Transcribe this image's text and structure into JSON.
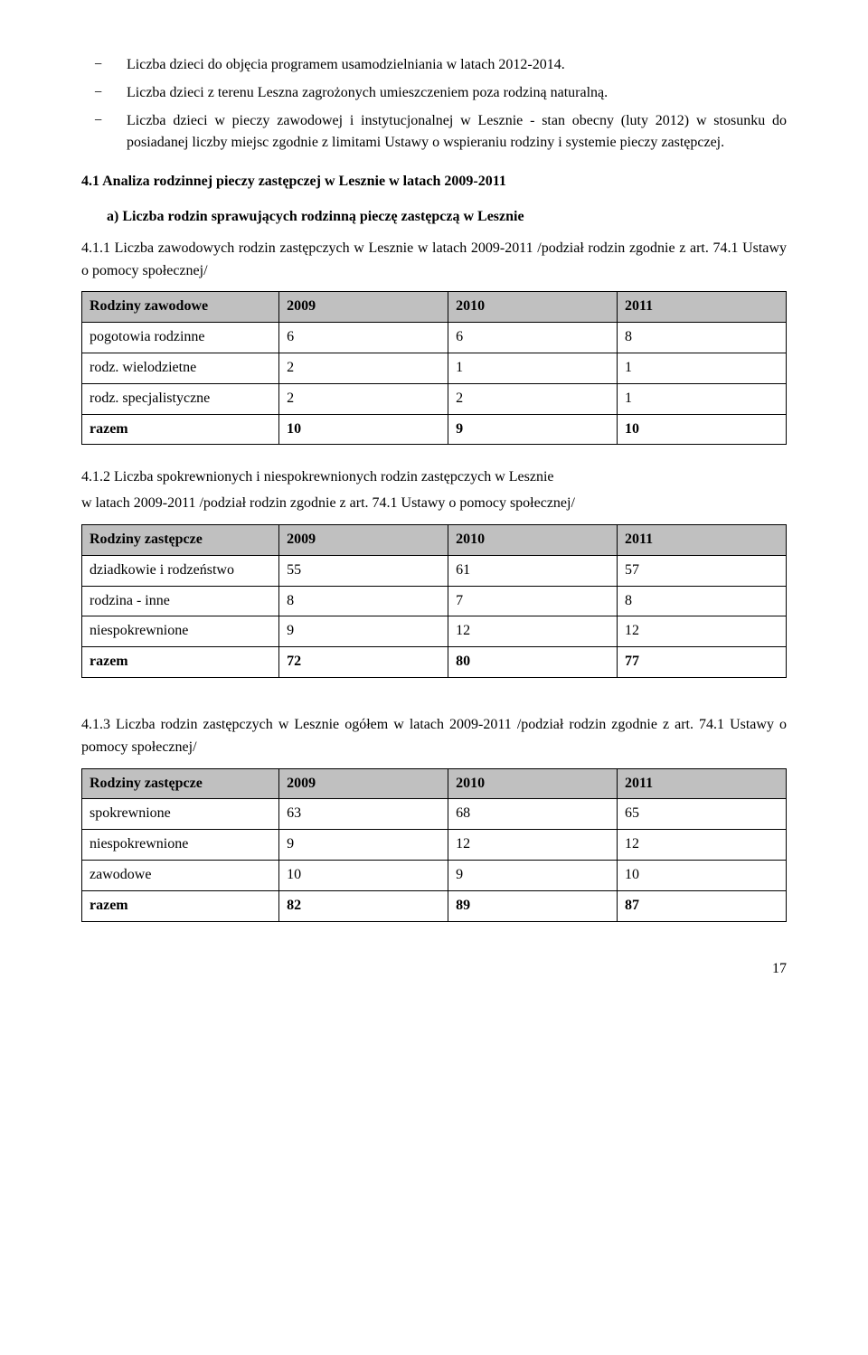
{
  "bullets": [
    "Liczba dzieci do objęcia programem usamodzielniania w latach 2012-2014.",
    "Liczba dzieci z terenu Leszna zagrożonych umieszczeniem poza rodziną naturalną.",
    "Liczba dzieci w pieczy zawodowej i instytucjonalnej w Lesznie - stan obecny (luty 2012) w stosunku do posiadanej liczby miejsc zgodnie z limitami Ustawy o wspieraniu rodziny i systemie pieczy zastępczej."
  ],
  "bullet_marker": "−",
  "heading_4_1": "4.1    Analiza rodzinnej pieczy zastępczej w Lesznie w latach 2009-2011",
  "sub_a": "a)   Liczba rodzin sprawujących rodzinną pieczę zastępczą w Lesznie",
  "para_4_1_1": "4.1.1  Liczba zawodowych rodzin zastępczych w Lesznie w latach 2009-2011 /podział rodzin zgodnie z art. 74.1 Ustawy o pomocy społecznej/",
  "table1": {
    "header_bg": "#c0c0c0",
    "col_widths": [
      "28%",
      "24%",
      "24%",
      "24%"
    ],
    "headers": [
      "Rodziny zawodowe",
      "2009",
      "2010",
      "2011"
    ],
    "rows": [
      {
        "cells": [
          "pogotowia rodzinne",
          "6",
          "6",
          "8"
        ],
        "bold": false
      },
      {
        "cells": [
          "rodz. wielodzietne",
          "2",
          "1",
          "1"
        ],
        "bold": false
      },
      {
        "cells": [
          "rodz. specjalistyczne",
          "2",
          "2",
          "1"
        ],
        "bold": false
      },
      {
        "cells": [
          "razem",
          "10",
          "9",
          "10"
        ],
        "bold": true
      }
    ]
  },
  "para_4_1_2a": "4.1.2   Liczba spokrewnionych i niespokrewnionych rodzin zastępczych w Lesznie",
  "para_4_1_2b": "w latach 2009-2011 /podział rodzin zgodnie z art. 74.1 Ustawy o pomocy społecznej/",
  "table2": {
    "header_bg": "#c0c0c0",
    "col_widths": [
      "28%",
      "24%",
      "24%",
      "24%"
    ],
    "headers": [
      "Rodziny zastępcze",
      "2009",
      "2010",
      "2011"
    ],
    "rows": [
      {
        "cells": [
          "dziadkowie i rodzeństwo",
          "55",
          "61",
          "57"
        ],
        "bold": false
      },
      {
        "cells": [
          "rodzina - inne",
          "8",
          "7",
          "8"
        ],
        "bold": false
      },
      {
        "cells": [
          "niespokrewnione",
          "9",
          "12",
          "12"
        ],
        "bold": false
      },
      {
        "cells": [
          "razem",
          "72",
          "80",
          " 77"
        ],
        "bold": true
      }
    ]
  },
  "para_4_1_3": "4.1.3  Liczba rodzin zastępczych w Lesznie ogółem w latach 2009-2011 /podział rodzin zgodnie z art. 74.1 Ustawy o pomocy społecznej/",
  "table3": {
    "header_bg": "#c0c0c0",
    "col_widths": [
      "28%",
      "24%",
      "24%",
      "24%"
    ],
    "headers": [
      "Rodziny zastępcze",
      "2009",
      "2010",
      "2011"
    ],
    "rows": [
      {
        "cells": [
          "spokrewnione",
          "63",
          "68",
          "65"
        ],
        "bold": false
      },
      {
        "cells": [
          "niespokrewnione",
          "9",
          "12",
          "12"
        ],
        "bold": false
      },
      {
        "cells": [
          "zawodowe",
          "10",
          " 9",
          "10"
        ],
        "bold": false
      },
      {
        "cells": [
          "razem",
          "82",
          "89",
          "87"
        ],
        "bold": true
      }
    ]
  },
  "page_number": "17"
}
